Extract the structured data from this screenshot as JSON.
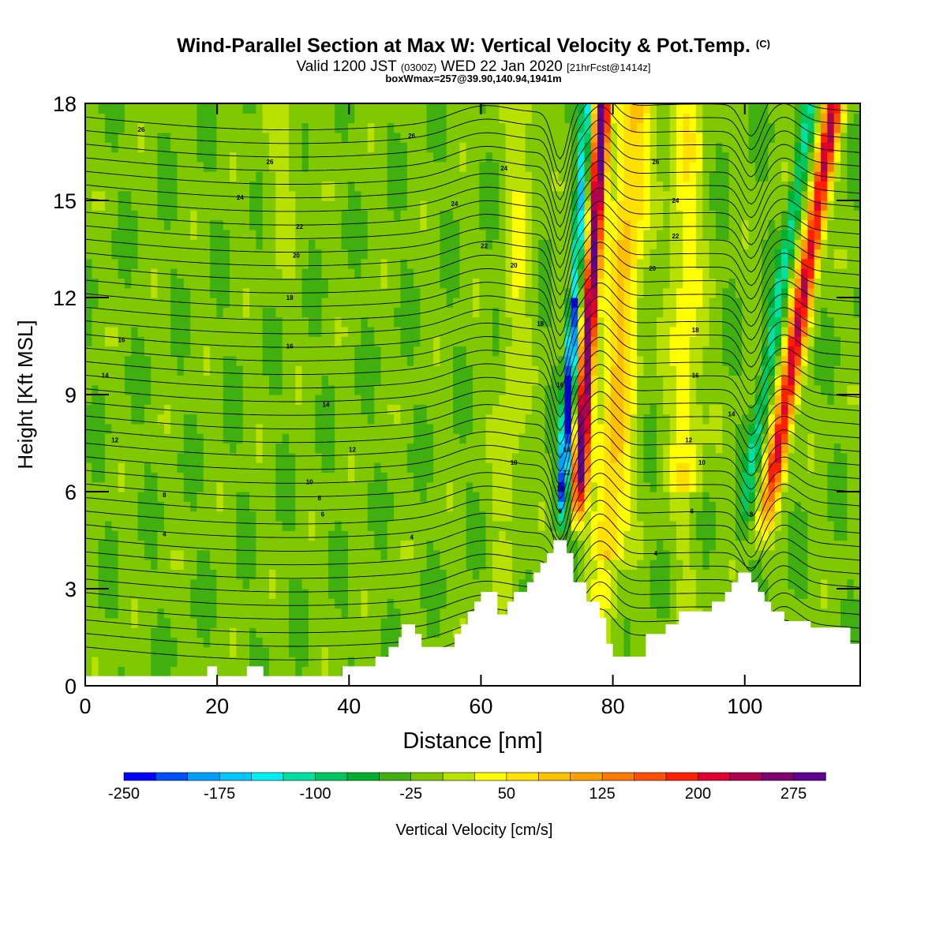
{
  "title": {
    "main": "Wind-Parallel Section at Max W: Vertical Velocity & Pot.Temp.",
    "tag": "(C)",
    "valid_a": "Valid 1200 JST",
    "valid_b": "(0300Z)",
    "valid_c": "WED 22 Jan 2020",
    "valid_d": "[21hrFcst@1414z]",
    "box": "boxWmax=257@39.90,140.94,1941m"
  },
  "chart_data": {
    "type": "heatmap",
    "xlabel": "Distance [nm]",
    "ylabel": "Height [Kft MSL]",
    "xlim": [
      0,
      117.5
    ],
    "ylim": [
      0,
      18
    ],
    "xticks": [
      0,
      20,
      40,
      60,
      80,
      100
    ],
    "yticks": [
      0,
      3,
      6,
      9,
      12,
      15,
      18
    ],
    "colorbar": {
      "label": "Vertical Velocity [cm/s]",
      "ticks": [
        -250,
        -175,
        -100,
        -25,
        50,
        125,
        200,
        275
      ],
      "min": -250,
      "step": 25,
      "colors": [
        "#0000ff",
        "#0050ff",
        "#00a0ff",
        "#00c8ff",
        "#00f0f0",
        "#00e0a0",
        "#00c860",
        "#00b030",
        "#40b010",
        "#80c800",
        "#b8e000",
        "#ffff00",
        "#ffe000",
        "#ffc000",
        "#ffa000",
        "#ff7800",
        "#ff5000",
        "#ff2000",
        "#e00030",
        "#b00050",
        "#800070",
        "#600090"
      ]
    },
    "terrain_kft": [
      [
        0,
        0.3
      ],
      [
        18.5,
        0.3
      ],
      [
        18.5,
        0.6
      ],
      [
        20,
        0.6
      ],
      [
        20,
        0.3
      ],
      [
        24.5,
        0.3
      ],
      [
        24.5,
        0.6
      ],
      [
        27,
        0.6
      ],
      [
        27,
        0.3
      ],
      [
        39,
        0.3
      ],
      [
        39,
        0.6
      ],
      [
        44,
        0.6
      ],
      [
        44,
        0.9
      ],
      [
        46,
        0.9
      ],
      [
        46,
        1.2
      ],
      [
        47.5,
        1.2
      ],
      [
        47.5,
        1.5
      ],
      [
        48,
        1.5
      ],
      [
        48,
        1.9
      ],
      [
        50,
        1.9
      ],
      [
        50,
        1.6
      ],
      [
        51,
        1.6
      ],
      [
        51,
        1.2
      ],
      [
        56,
        1.2
      ],
      [
        56,
        1.6
      ],
      [
        57,
        1.6
      ],
      [
        57,
        1.9
      ],
      [
        58,
        1.9
      ],
      [
        58,
        2.3
      ],
      [
        59,
        2.3
      ],
      [
        59,
        2.6
      ],
      [
        60,
        2.6
      ],
      [
        60,
        2.9
      ],
      [
        62.5,
        2.9
      ],
      [
        62.5,
        2.2
      ],
      [
        64,
        2.2
      ],
      [
        64,
        2.6
      ],
      [
        65,
        2.6
      ],
      [
        65,
        2.9
      ],
      [
        67,
        2.9
      ],
      [
        67,
        3.2
      ],
      [
        68,
        3.2
      ],
      [
        68,
        3.5
      ],
      [
        69,
        3.5
      ],
      [
        69,
        3.8
      ],
      [
        70,
        3.8
      ],
      [
        70,
        4.1
      ],
      [
        71,
        4.1
      ],
      [
        71,
        4.5
      ],
      [
        73,
        4.5
      ],
      [
        73,
        4.1
      ],
      [
        74,
        4.1
      ],
      [
        74,
        3.2
      ],
      [
        76,
        3.2
      ],
      [
        76,
        2.6
      ],
      [
        78,
        2.6
      ],
      [
        78,
        2.1
      ],
      [
        79,
        2.1
      ],
      [
        79,
        1.3
      ],
      [
        80,
        1.3
      ],
      [
        80,
        0.9
      ],
      [
        85,
        0.9
      ],
      [
        85,
        1.6
      ],
      [
        88,
        1.6
      ],
      [
        88,
        1.9
      ],
      [
        90,
        1.9
      ],
      [
        90,
        2.3
      ],
      [
        95,
        2.3
      ],
      [
        95,
        2.6
      ],
      [
        97,
        2.6
      ],
      [
        97,
        2.9
      ],
      [
        98,
        2.9
      ],
      [
        98,
        3.2
      ],
      [
        99,
        3.2
      ],
      [
        99,
        3.5
      ],
      [
        101,
        3.5
      ],
      [
        101,
        3.2
      ],
      [
        102,
        3.2
      ],
      [
        102,
        2.9
      ],
      [
        103,
        2.9
      ],
      [
        103,
        2.6
      ],
      [
        104,
        2.6
      ],
      [
        104,
        2.3
      ],
      [
        106,
        2.3
      ],
      [
        106,
        2.0
      ],
      [
        110,
        2.0
      ],
      [
        110,
        1.8
      ],
      [
        116,
        1.8
      ],
      [
        116,
        1.3
      ],
      [
        117.5,
        1.3
      ],
      [
        117.5,
        0
      ]
    ],
    "contour_labels": [
      {
        "x": 8.5,
        "y": 17.2,
        "t": "26"
      },
      {
        "x": 49.5,
        "y": 17.0,
        "t": "26"
      },
      {
        "x": 28,
        "y": 16.2,
        "t": "26"
      },
      {
        "x": 63.5,
        "y": 16.0,
        "t": "24"
      },
      {
        "x": 86.5,
        "y": 16.2,
        "t": "26"
      },
      {
        "x": 23.5,
        "y": 15.1,
        "t": "24"
      },
      {
        "x": 56,
        "y": 14.9,
        "t": "24"
      },
      {
        "x": 89.5,
        "y": 15.0,
        "t": "24"
      },
      {
        "x": 32.5,
        "y": 14.2,
        "t": "22"
      },
      {
        "x": 60.5,
        "y": 13.6,
        "t": "22"
      },
      {
        "x": 89.5,
        "y": 13.9,
        "t": "22"
      },
      {
        "x": 32,
        "y": 13.3,
        "t": "20"
      },
      {
        "x": 65,
        "y": 13.0,
        "t": "20"
      },
      {
        "x": 86,
        "y": 12.9,
        "t": "20"
      },
      {
        "x": 31,
        "y": 12.0,
        "t": "18"
      },
      {
        "x": 69,
        "y": 11.2,
        "t": "18"
      },
      {
        "x": 92.5,
        "y": 11.0,
        "t": "18"
      },
      {
        "x": 5.5,
        "y": 10.7,
        "t": "16"
      },
      {
        "x": 31,
        "y": 10.5,
        "t": "16"
      },
      {
        "x": 72,
        "y": 9.3,
        "t": "16"
      },
      {
        "x": 92.5,
        "y": 9.6,
        "t": "16"
      },
      {
        "x": 3,
        "y": 9.6,
        "t": "14"
      },
      {
        "x": 36.5,
        "y": 8.7,
        "t": "14"
      },
      {
        "x": 98,
        "y": 8.4,
        "t": "14"
      },
      {
        "x": 73,
        "y": 7.3,
        "t": "14"
      },
      {
        "x": 4.5,
        "y": 7.6,
        "t": "12"
      },
      {
        "x": 40.5,
        "y": 7.3,
        "t": "12"
      },
      {
        "x": 91.5,
        "y": 7.6,
        "t": "12"
      },
      {
        "x": 73,
        "y": 6.6,
        "t": "12"
      },
      {
        "x": 34,
        "y": 6.3,
        "t": "10"
      },
      {
        "x": 65,
        "y": 6.9,
        "t": "10"
      },
      {
        "x": 93.5,
        "y": 6.9,
        "t": "10"
      },
      {
        "x": 72,
        "y": 6.1,
        "t": "10"
      },
      {
        "x": 12,
        "y": 5.9,
        "t": "8"
      },
      {
        "x": 35.5,
        "y": 5.8,
        "t": "8"
      },
      {
        "x": 72,
        "y": 5.4,
        "t": "8"
      },
      {
        "x": 101,
        "y": 5.3,
        "t": "8"
      },
      {
        "x": 36,
        "y": 5.3,
        "t": "6"
      },
      {
        "x": 92,
        "y": 5.4,
        "t": "6"
      },
      {
        "x": 12,
        "y": 4.7,
        "t": "4"
      },
      {
        "x": 49.5,
        "y": 4.6,
        "t": "4"
      },
      {
        "x": 86.5,
        "y": 4.1,
        "t": "4"
      }
    ]
  }
}
